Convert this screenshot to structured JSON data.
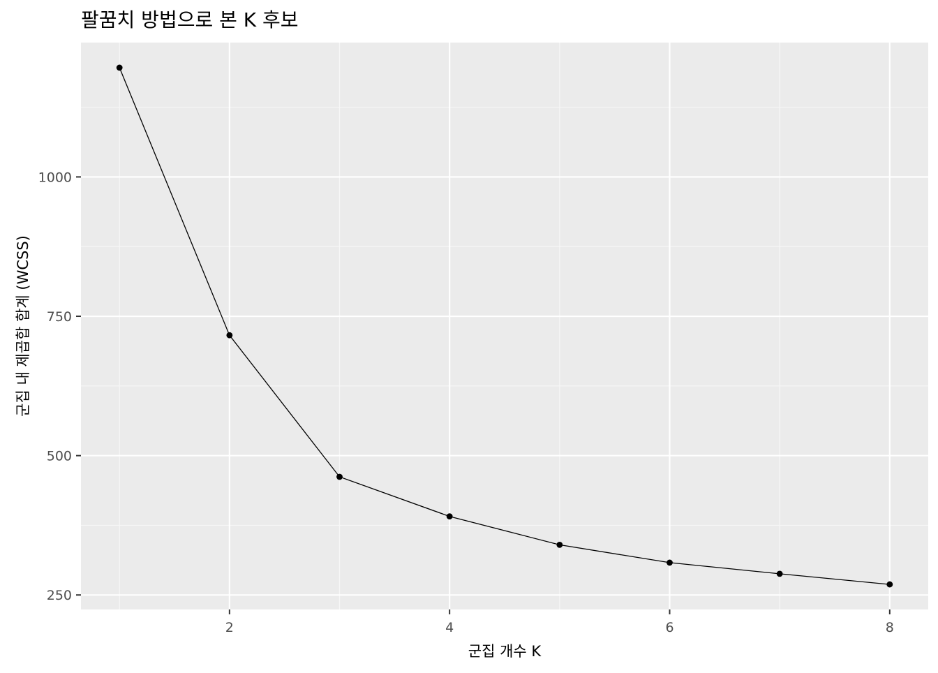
{
  "chart_data": {
    "type": "line",
    "title": "팔꿈치 방법으로 본 K 후보",
    "xlabel": "군집 개수 K",
    "ylabel": "군집 내 제곱합 합계 (WCSS)",
    "x": [
      1,
      2,
      3,
      4,
      5,
      6,
      7,
      8
    ],
    "series": [
      {
        "values": [
          1196,
          716,
          462,
          391,
          340,
          308,
          288,
          269
        ]
      }
    ],
    "x_ticks": [
      2,
      4,
      6,
      8
    ],
    "x_tick_labels": [
      "2",
      "4",
      "6",
      "8"
    ],
    "y_ticks": [
      250,
      500,
      750,
      1000
    ],
    "y_tick_labels": [
      "250",
      "500",
      "750",
      "1000"
    ],
    "xlim": [
      0.65,
      8.35
    ],
    "ylim": [
      224,
      1241
    ],
    "grid": true,
    "legend": "none",
    "colors": {
      "panel_background": "#EBEBEB",
      "grid_major": "#FFFFFF",
      "grid_minor": "#F7F7F7",
      "line": "#000000",
      "point": "#000000",
      "tick_text": "#4D4D4D",
      "tick_mark": "#333333"
    }
  }
}
